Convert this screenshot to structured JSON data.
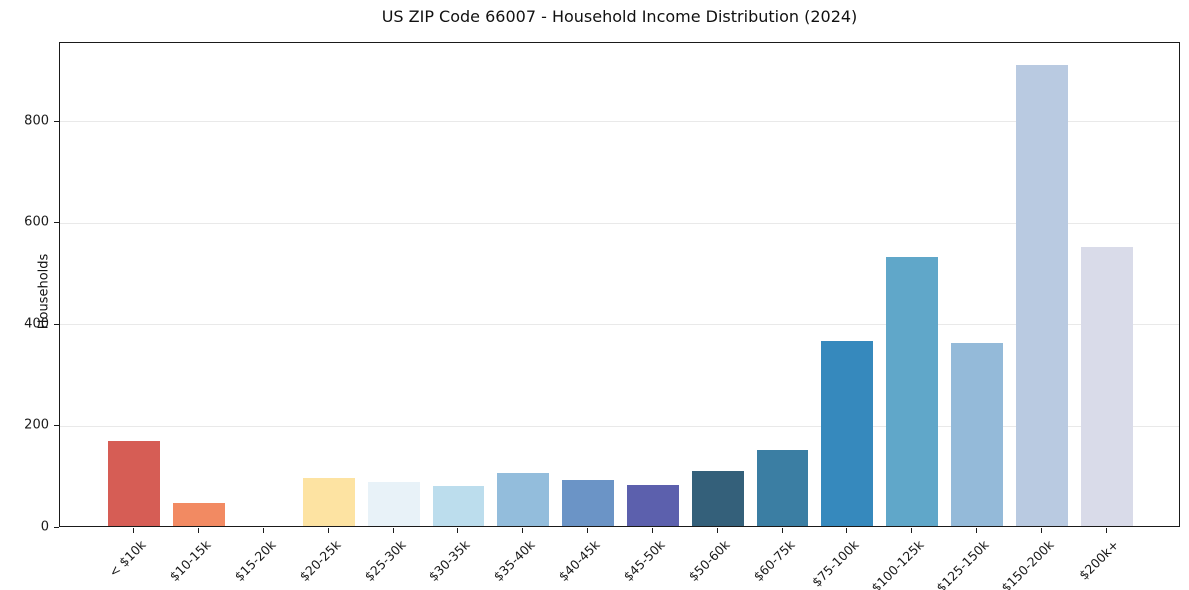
{
  "title": "US ZIP Code 66007 - Household Income Distribution (2024)",
  "chart_data": {
    "type": "bar",
    "title": "US ZIP Code 66007 - Household Income Distribution (2024)",
    "xlabel": "",
    "ylabel": "Households",
    "categories": [
      "< $10k",
      "$10-15k",
      "$15-20k",
      "$20-25k",
      "$25-30k",
      "$30-35k",
      "$35-40k",
      "$40-45k",
      "$45-50k",
      "$50-60k",
      "$60-75k",
      "$75-100k",
      "$100-125k",
      "$125-150k",
      "$150-200k",
      "$200k+"
    ],
    "values": [
      168,
      45,
      0,
      95,
      86,
      78,
      104,
      91,
      81,
      108,
      150,
      365,
      530,
      361,
      907,
      550
    ],
    "bar_colors": [
      "#d65d55",
      "#f28a62",
      "#fdc98c",
      "#fde3a2",
      "#e8f2f8",
      "#bcdded",
      "#93bddc",
      "#6b94c6",
      "#5c60ad",
      "#34607a",
      "#3b7ea3",
      "#3689bd",
      "#60a7c9",
      "#94bad9",
      "#b9cae1",
      "#d9dbe9"
    ],
    "yticks": [
      0,
      200,
      400,
      600,
      800
    ],
    "ylim": [
      0,
      955
    ],
    "grid": "horizontal",
    "legend": "none",
    "background_color": "#ffffff",
    "frame_color": "#1a1a1a",
    "gridline_color": "#e9e9e9"
  }
}
